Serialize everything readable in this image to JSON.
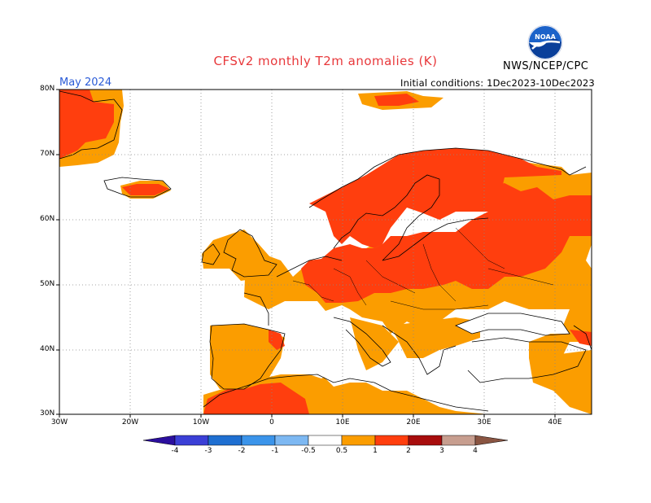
{
  "title": "CFSv2 monthly T2m anomalies (K)",
  "month_label": "May 2024",
  "initial_conditions": "Initial conditions: 1Dec2023-10Dec2023",
  "agency": "NWS/NCEP/CPC",
  "logo": {
    "icon": "noaa-logo-icon",
    "text": "NOAA"
  },
  "map": {
    "projection": "equirectangular",
    "lon_range": [
      -30,
      45
    ],
    "lat_range": [
      30,
      80
    ],
    "gridlines": "dotted",
    "lat_ticks": [
      "30N",
      "40N",
      "50N",
      "60N",
      "70N",
      "80N"
    ],
    "lon_ticks": [
      "30W",
      "20W",
      "10W",
      "0",
      "10E",
      "20E",
      "30E",
      "40E"
    ]
  },
  "colorbar": {
    "labels": [
      "-4",
      "-3",
      "-2",
      "-1",
      "-0.5",
      "0.5",
      "1",
      "2",
      "3",
      "4"
    ],
    "colors": [
      "#2b0f9e",
      "#3b3fd6",
      "#1f6fd1",
      "#3b94ea",
      "#7db8f2",
      "#ffffff",
      "#fb9d00",
      "#ff3e0e",
      "#a80d0d",
      "#c79e8f",
      "#8a5542"
    ]
  },
  "anomaly_regions": [
    {
      "region": "Greenland",
      "category": "1-2"
    },
    {
      "region": "Scandinavia",
      "category": "1-2"
    },
    {
      "region": "Central Europe",
      "category": "1-2"
    },
    {
      "region": "Western Russia",
      "category": "1-2"
    },
    {
      "region": "Northwest Africa",
      "category": "1-2"
    },
    {
      "region": "Iberia",
      "category": "0.5-1"
    },
    {
      "region": "British Isles",
      "category": "0.5-1"
    },
    {
      "region": "France",
      "category": "0.5-1"
    },
    {
      "region": "Eastern Europe",
      "category": "0.5-1"
    },
    {
      "region": "Mediterranean",
      "category": "near normal"
    }
  ]
}
